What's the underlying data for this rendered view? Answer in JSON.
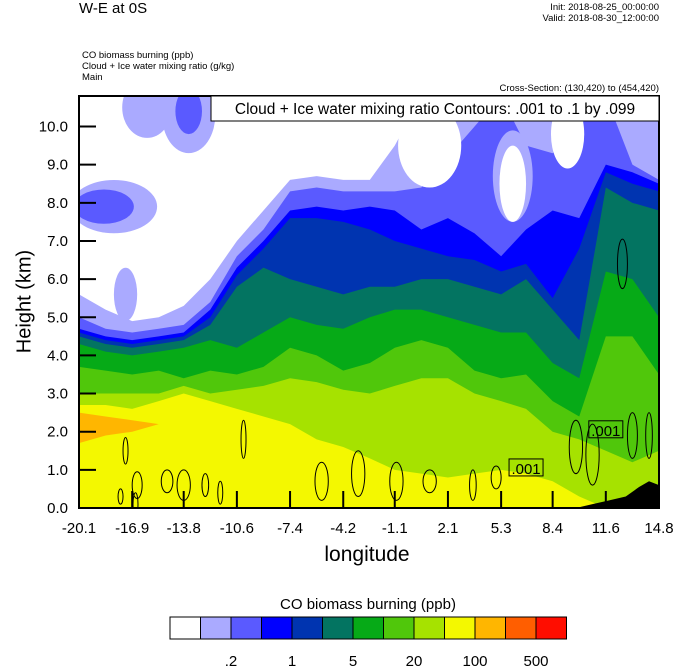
{
  "header": {
    "title": "W-E at 0S",
    "init": "Init: 2018-08-25_00:00:00",
    "valid": "Valid: 2018-08-30_12:00:00",
    "variables": [
      "CO biomass burning   (ppb)",
      "Cloud + Ice water mixing ratio   (g/kg)",
      "Main"
    ],
    "cross_section": "Cross-Section: (130,420) to (454,420)"
  },
  "chart_data": {
    "type": "heatmap",
    "subtype": "filled-contour cross-section",
    "xlabel": "longitude",
    "ylabel": "Height (km)",
    "xlim": [
      -20.1,
      14.8
    ],
    "ylim": [
      0,
      10.8
    ],
    "x_ticks": [
      "-20.1",
      "-16.9",
      "-13.8",
      "-10.6",
      "-7.4",
      "-4.2",
      "-1.1",
      "2.1",
      "5.3",
      "8.4",
      "11.6",
      "14.8"
    ],
    "x_tick_values": [
      -20.1,
      -16.9,
      -13.8,
      -10.6,
      -7.4,
      -4.2,
      -1.1,
      2.1,
      5.3,
      8.4,
      11.6,
      14.8
    ],
    "y_ticks": [
      "0.0",
      "1.0",
      "2.0",
      "3.0",
      "4.0",
      "5.0",
      "6.0",
      "7.0",
      "8.0",
      "9.0",
      "10.0"
    ],
    "y_tick_values": [
      0,
      1,
      2,
      3,
      4,
      5,
      6,
      7,
      8,
      9,
      10
    ],
    "overlay_title": "Cloud + Ice water mixing ratio Contours: .001 to .1 by .099",
    "contour_labels": [
      {
        "text": ".001",
        "lon": 6.8,
        "h": 1.05
      },
      {
        "text": ".001",
        "lon": 11.6,
        "h": 2.05
      }
    ],
    "columns_lon": [
      -20.1,
      -18.5,
      -16.9,
      -15.3,
      -13.8,
      -12.2,
      -10.6,
      -9.0,
      -7.4,
      -5.8,
      -4.2,
      -2.6,
      -1.1,
      0.5,
      2.1,
      3.7,
      5.3,
      6.8,
      8.4,
      10.0,
      11.6,
      13.2,
      14.8
    ],
    "co_levels": [
      {
        "threshold": 0.1,
        "color": "#aaaaff",
        "top": [
          5.6,
          5.2,
          4.9,
          5.0,
          5.3,
          6.0,
          7.0,
          7.8,
          8.6,
          8.7,
          8.6,
          8.6,
          9.5,
          10.8,
          10.8,
          10.8,
          10.8,
          10.8,
          10.8,
          10.8,
          10.8,
          10.8,
          10.8
        ]
      },
      {
        "threshold": 0.2,
        "color": "#5a5aff",
        "top": [
          5.0,
          4.7,
          4.6,
          4.7,
          4.8,
          5.4,
          6.6,
          7.3,
          8.3,
          8.4,
          8.3,
          8.3,
          8.3,
          8.4,
          9.2,
          10.0,
          10.8,
          9.5,
          9.3,
          10.0,
          10.8,
          9.0,
          8.6
        ]
      },
      {
        "threshold": 0.5,
        "color": "#0000ff",
        "top": [
          4.7,
          4.5,
          4.4,
          4.5,
          4.6,
          5.2,
          6.3,
          7.0,
          7.8,
          7.9,
          7.8,
          7.9,
          7.8,
          7.3,
          7.6,
          7.2,
          6.6,
          7.3,
          7.8,
          7.6,
          9.0,
          8.8,
          8.5
        ]
      },
      {
        "threshold": 1,
        "color": "#0034b0",
        "top": [
          4.6,
          4.4,
          4.3,
          4.4,
          4.5,
          5.0,
          6.1,
          6.8,
          7.6,
          7.6,
          7.5,
          7.3,
          7.0,
          6.8,
          6.6,
          6.5,
          6.2,
          6.4,
          5.5,
          6.8,
          8.8,
          8.5,
          8.3
        ]
      },
      {
        "threshold": 2,
        "color": "#037461",
        "top": [
          4.5,
          4.3,
          4.2,
          4.3,
          4.4,
          4.8,
          5.8,
          6.3,
          6.0,
          5.8,
          5.6,
          5.8,
          5.8,
          6.0,
          6.0,
          5.8,
          5.6,
          6.0,
          5.2,
          4.4,
          8.4,
          8.0,
          7.8
        ]
      },
      {
        "threshold": 5,
        "color": "#06aa17",
        "top": [
          4.3,
          4.1,
          4.0,
          4.1,
          4.2,
          4.4,
          4.2,
          4.6,
          5.0,
          4.8,
          4.7,
          5.0,
          5.2,
          5.2,
          5.0,
          4.8,
          4.6,
          4.6,
          3.8,
          3.4,
          6.2,
          6.0,
          5.0
        ]
      },
      {
        "threshold": 10,
        "color": "#50c70b",
        "top": [
          3.7,
          3.6,
          3.5,
          3.6,
          3.4,
          3.6,
          3.5,
          3.7,
          4.2,
          4.0,
          3.6,
          3.8,
          4.2,
          4.4,
          4.2,
          3.6,
          3.4,
          3.5,
          2.8,
          2.4,
          4.5,
          4.5,
          3.5
        ]
      },
      {
        "threshold": 20,
        "color": "#a6e200",
        "top": [
          3.0,
          3.0,
          3.0,
          3.0,
          3.2,
          3.0,
          3.1,
          3.2,
          3.4,
          3.3,
          3.1,
          3.0,
          3.2,
          3.4,
          3.4,
          3.0,
          2.8,
          2.6,
          2.0,
          1.8,
          1.5,
          1.2,
          1.5
        ]
      },
      {
        "threshold": 50,
        "color": "#f4f800",
        "top": [
          2.7,
          2.7,
          2.6,
          2.8,
          3.0,
          2.8,
          2.6,
          2.4,
          2.2,
          1.8,
          1.6,
          1.3,
          1.0,
          0.9,
          0.8,
          0.9,
          1.0,
          0.9,
          0.7,
          0.3,
          0.0,
          0.0,
          0.0
        ]
      },
      {
        "threshold": 100,
        "color": "#ffb600",
        "top": [
          2.5,
          2.4,
          2.3,
          2.2,
          0,
          0,
          0,
          0,
          0,
          0,
          0,
          0,
          0,
          0,
          0,
          0,
          0,
          0,
          0,
          0,
          0,
          0,
          0
        ],
        "bottom": [
          1.7,
          1.9,
          2.0,
          2.2,
          0,
          0,
          0,
          0,
          0,
          0,
          0,
          0,
          0,
          0,
          0,
          0,
          0,
          0,
          0,
          0,
          0,
          0,
          0
        ]
      }
    ],
    "patches": [
      {
        "lon": -18.0,
        "h": 7.9,
        "rlon": 2.6,
        "rh": 0.7,
        "color": "#aaaaff"
      },
      {
        "lon": -18.6,
        "h": 7.9,
        "rlon": 1.8,
        "rh": 0.45,
        "color": "#5a5aff"
      },
      {
        "lon": -16.0,
        "h": 10.5,
        "rlon": 1.5,
        "rh": 0.8,
        "color": "#aaaaff"
      },
      {
        "lon": -13.5,
        "h": 10.3,
        "rlon": 1.6,
        "rh": 1.0,
        "color": "#aaaaff"
      },
      {
        "lon": -13.5,
        "h": 10.4,
        "rlon": 0.8,
        "rh": 0.6,
        "color": "#5a5aff"
      },
      {
        "lon": -17.3,
        "h": 5.6,
        "rlon": 0.7,
        "rh": 0.7,
        "color": "#aaaaff"
      },
      {
        "lon": 1.0,
        "h": 9.5,
        "rlon": 1.9,
        "rh": 1.1,
        "color": "#ffffff"
      },
      {
        "lon": 6.0,
        "h": 8.7,
        "rlon": 1.2,
        "rh": 1.2,
        "color": "#aaaaff"
      },
      {
        "lon": 6.0,
        "h": 8.5,
        "rlon": 0.8,
        "rh": 1.0,
        "color": "#ffffff"
      },
      {
        "lon": 9.3,
        "h": 9.8,
        "rlon": 1.0,
        "rh": 0.9,
        "color": "#ffffff"
      }
    ],
    "terrain": {
      "lon": [
        9.8,
        10.8,
        11.8,
        12.8,
        13.6,
        14.2,
        14.8
      ],
      "h": [
        0,
        0.1,
        0.2,
        0.3,
        0.55,
        0.7,
        0.6
      ],
      "color": "#000000"
    },
    "contours": [
      {
        "lon": -17.3,
        "h": 1.5,
        "rlon": 0.15,
        "rh": 0.35
      },
      {
        "lon": -16.6,
        "h": 0.6,
        "rlon": 0.3,
        "rh": 0.35
      },
      {
        "lon": -17.6,
        "h": 0.3,
        "rlon": 0.15,
        "rh": 0.2
      },
      {
        "lon": -14.8,
        "h": 0.7,
        "rlon": 0.35,
        "rh": 0.3
      },
      {
        "lon": -13.8,
        "h": 0.6,
        "rlon": 0.4,
        "rh": 0.4
      },
      {
        "lon": -12.5,
        "h": 0.6,
        "rlon": 0.2,
        "rh": 0.3
      },
      {
        "lon": -11.6,
        "h": 0.4,
        "rlon": 0.15,
        "rh": 0.3
      },
      {
        "lon": -16.7,
        "h": 0.1,
        "rlon": 0.15,
        "rh": 0.3
      },
      {
        "lon": -10.2,
        "h": 1.8,
        "rlon": 0.15,
        "rh": 0.5
      },
      {
        "lon": -5.5,
        "h": 0.7,
        "rlon": 0.4,
        "rh": 0.5
      },
      {
        "lon": -3.3,
        "h": 0.9,
        "rlon": 0.4,
        "rh": 0.6
      },
      {
        "lon": -1.0,
        "h": 0.7,
        "rlon": 0.4,
        "rh": 0.5
      },
      {
        "lon": 1.0,
        "h": 0.7,
        "rlon": 0.4,
        "rh": 0.3
      },
      {
        "lon": 3.6,
        "h": 0.6,
        "rlon": 0.2,
        "rh": 0.4
      },
      {
        "lon": 5.0,
        "h": 0.8,
        "rlon": 0.3,
        "rh": 0.3
      },
      {
        "lon": 9.8,
        "h": 1.6,
        "rlon": 0.4,
        "rh": 0.7
      },
      {
        "lon": 10.8,
        "h": 1.4,
        "rlon": 0.4,
        "rh": 0.8
      },
      {
        "lon": 13.2,
        "h": 1.9,
        "rlon": 0.3,
        "rh": 0.6
      },
      {
        "lon": 14.2,
        "h": 1.9,
        "rlon": 0.2,
        "rh": 0.6
      },
      {
        "lon": 12.6,
        "h": 6.4,
        "rlon": 0.3,
        "rh": 0.65
      }
    ]
  },
  "colorbar": {
    "title": "CO biomass burning  (ppb)",
    "colors": [
      "#ffffff",
      "#aaaaff",
      "#5a5aff",
      "#0000ff",
      "#0034b0",
      "#037461",
      "#06aa17",
      "#50c70b",
      "#a6e200",
      "#f4f800",
      "#ffb600",
      "#ff5e00",
      "#ff0d00"
    ],
    "levels": [
      0.1,
      0.2,
      0.5,
      1,
      2,
      5,
      10,
      20,
      50,
      100,
      200,
      500
    ],
    "labels": [
      {
        "text": ".2",
        "boundary": 2
      },
      {
        "text": "1",
        "boundary": 4
      },
      {
        "text": "5",
        "boundary": 6
      },
      {
        "text": "20",
        "boundary": 8
      },
      {
        "text": "100",
        "boundary": 10
      },
      {
        "text": "500",
        "boundary": 12
      }
    ]
  }
}
